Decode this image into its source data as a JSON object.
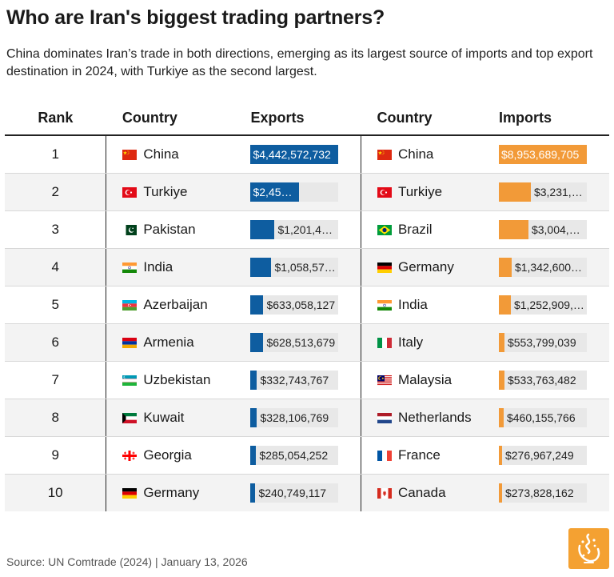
{
  "title": "Who are Iran's biggest trading partners?",
  "subtitle": "China dominates Iran’s trade in both directions, emerging as its largest source of imports and top export destination in 2024, with Turkiye as the second largest.",
  "headers": {
    "rank": "Rank",
    "country": "Country",
    "exports": "Exports",
    "country2": "Country",
    "imports": "Imports"
  },
  "colors": {
    "exports": "#0e5da0",
    "imports": "#f29a38",
    "bar_track": "#e8e8e8"
  },
  "chart_data": {
    "type": "table",
    "ranks": [
      "1",
      "2",
      "3",
      "4",
      "5",
      "6",
      "7",
      "8",
      "9",
      "10"
    ],
    "exports": [
      {
        "country": "China",
        "flag": "flag-china",
        "value": 4442572732,
        "label": "$4,442,572,732"
      },
      {
        "country": "Turkiye",
        "flag": "flag-turkiye",
        "value": 2450000000,
        "label": "$2,45…"
      },
      {
        "country": "Pakistan",
        "flag": "flag-pakistan",
        "value": 1201460000,
        "label": "$1,201,46…"
      },
      {
        "country": "India",
        "flag": "flag-india",
        "value": 1058570000,
        "label": "$1,058,57…"
      },
      {
        "country": "Azerbaijan",
        "flag": "flag-azerbaijan",
        "value": 633058127,
        "label": "$633,058,127"
      },
      {
        "country": "Armenia",
        "flag": "flag-armenia",
        "value": 628513679,
        "label": "$628,513,679"
      },
      {
        "country": "Uzbekistan",
        "flag": "flag-uzbekistan",
        "value": 332743767,
        "label": "$332,743,767"
      },
      {
        "country": "Kuwait",
        "flag": "flag-kuwait",
        "value": 328106769,
        "label": "$328,106,769"
      },
      {
        "country": "Georgia",
        "flag": "flag-georgia",
        "value": 285054252,
        "label": "$285,054,252"
      },
      {
        "country": "Germany",
        "flag": "flag-germany",
        "value": 240749117,
        "label": "$240,749,117"
      }
    ],
    "imports": [
      {
        "country": "China",
        "flag": "flag-china",
        "value": 8953689705,
        "label": "$8,953,689,705"
      },
      {
        "country": "Turkiye",
        "flag": "flag-turkiye",
        "value": 3231100000,
        "label": "$3,231,1…"
      },
      {
        "country": "Brazil",
        "flag": "flag-brazil",
        "value": 3004100000,
        "label": "$3,004,1…"
      },
      {
        "country": "Germany",
        "flag": "flag-germany",
        "value": 1342600000,
        "label": "$1,342,600,…"
      },
      {
        "country": "India",
        "flag": "flag-india",
        "value": 1252909000,
        "label": "$1,252,909,…"
      },
      {
        "country": "Italy",
        "flag": "flag-italy",
        "value": 553799039,
        "label": "$553,799,039"
      },
      {
        "country": "Malaysia",
        "flag": "flag-malaysia",
        "value": 533763482,
        "label": "$533,763,482"
      },
      {
        "country": "Netherlands",
        "flag": "flag-netherlands",
        "value": 460155766,
        "label": "$460,155,766"
      },
      {
        "country": "France",
        "flag": "flag-france",
        "value": 276967249,
        "label": "$276,967,249"
      },
      {
        "country": "Canada",
        "flag": "flag-canada",
        "value": 273828162,
        "label": "$273,828,162"
      }
    ]
  },
  "footer": "Source: UN Comtrade (2024) | January 13, 2026",
  "logo": "aljazeera-logo"
}
